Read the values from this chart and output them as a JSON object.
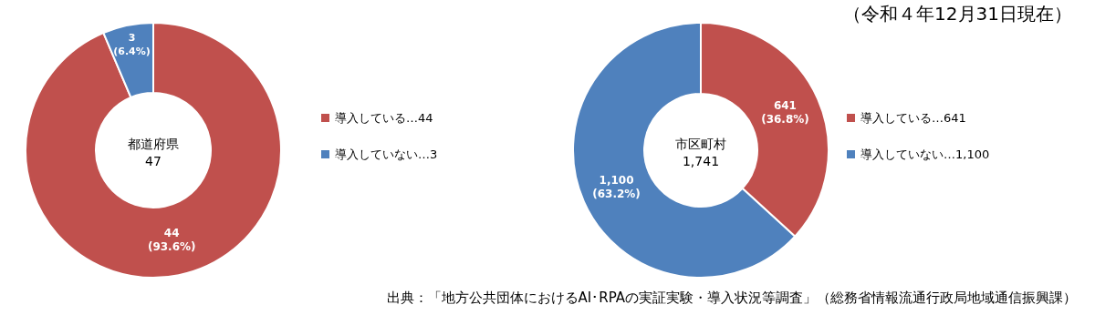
{
  "chart_data": [
    {
      "type": "donut",
      "title": "都道府県",
      "annotations": [
        "47"
      ],
      "categories": [
        "導入している…44",
        "導入していない…3"
      ],
      "values": [
        44,
        3
      ],
      "colors": [
        "#c0504d",
        "#4f81bd"
      ],
      "value_labels": [
        "44 (93.6%)",
        "3 (6.4%)"
      ],
      "legend": "right"
    },
    {
      "type": "donut",
      "title": "市区町村",
      "annotations": [
        "1,741",
        "（令和４年12月31日現在）",
        "出典：「地方公共団体におけるAI･RPAの実証実験・導入状況等調査」（総務省情報流通行政局地域通信振興課）"
      ],
      "categories": [
        "導入している…641",
        "導入していない…1,100"
      ],
      "values": [
        641,
        1100
      ],
      "colors": [
        "#c0504d",
        "#4f81bd"
      ],
      "value_labels": [
        "641 (36.8%)",
        "1,100 (63.2%)"
      ],
      "legend": "right"
    }
  ]
}
